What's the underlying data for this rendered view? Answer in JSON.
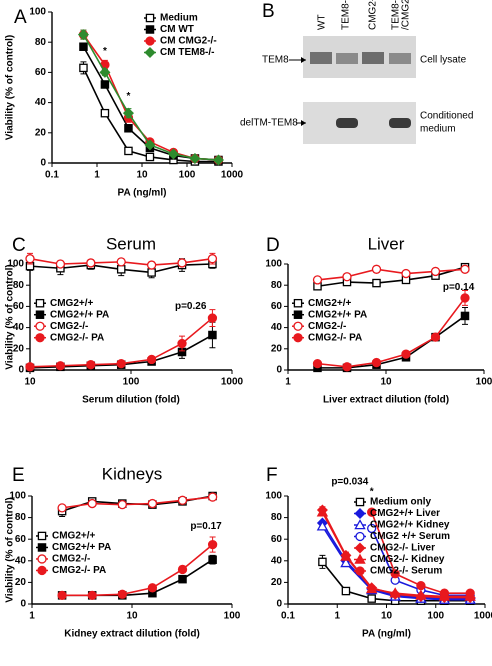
{
  "chart_data": [
    {
      "type": "line",
      "panel": "A",
      "ylabel": "Viability (% of control)",
      "xlabel": "PA (ng/ml)",
      "xscale": "log",
      "xlim": [
        0.1,
        1000
      ],
      "xticks": [
        0.1,
        1,
        10,
        100,
        1000
      ],
      "ylim": [
        0,
        100
      ],
      "yticks": [
        0,
        20,
        40,
        60,
        80,
        100
      ],
      "legend": "upper right",
      "x": [
        0.5,
        1.5,
        5,
        15,
        50,
        150,
        500
      ],
      "series": [
        {
          "name": "Medium",
          "color": "#000000",
          "marker": "square",
          "filled": false,
          "values": [
            63,
            33,
            8,
            4,
            2,
            1,
            1
          ],
          "errors": [
            4,
            2,
            1,
            1,
            1,
            1,
            1
          ]
        },
        {
          "name": "CM WT",
          "color": "#000000",
          "marker": "square",
          "filled": true,
          "values": [
            77,
            52,
            23,
            10,
            5,
            3,
            2
          ],
          "errors": [
            2,
            2,
            2,
            1,
            1,
            1,
            1
          ]
        },
        {
          "name": "CM CMG2-/-",
          "color": "#e8191e",
          "marker": "circle",
          "filled": true,
          "values": [
            85,
            65,
            30,
            14,
            7,
            3,
            2
          ],
          "errors": [
            3,
            3,
            3,
            1,
            1,
            1,
            1
          ]
        },
        {
          "name": "CM TEM8-/-",
          "color": "#2e8b2e",
          "marker": "diamond",
          "filled": true,
          "values": [
            85,
            60,
            33,
            12,
            6,
            3,
            2
          ],
          "errors": [
            3,
            2,
            3,
            1,
            1,
            1,
            1
          ]
        }
      ],
      "annotations": [
        {
          "text": "*",
          "x": 1.5,
          "y": 74
        },
        {
          "text": "*",
          "x": 5,
          "y": 44
        }
      ]
    },
    {
      "type": "line",
      "panel": "C",
      "title": "Serum",
      "ylabel": "Viability (% of control)",
      "xlabel": "Serum dilution (fold)",
      "xscale": "log",
      "xlim": [
        10,
        1000
      ],
      "xticks": [
        10,
        100,
        1000
      ],
      "ylim": [
        0,
        100
      ],
      "yticks": [
        0,
        20,
        40,
        60,
        80,
        100
      ],
      "legend": "center left",
      "x": [
        10,
        20,
        40,
        80,
        160,
        320,
        640
      ],
      "series": [
        {
          "name": "CMG2+/+",
          "color": "#000000",
          "marker": "square",
          "filled": false,
          "values": [
            98,
            96,
            99,
            95,
            92,
            99,
            100
          ],
          "errors": [
            4,
            6,
            4,
            6,
            5,
            6,
            4
          ]
        },
        {
          "name": "CMG2+/+ PA",
          "color": "#000000",
          "marker": "square",
          "filled": true,
          "values": [
            2,
            3,
            4,
            5,
            8,
            17,
            33
          ],
          "errors": [
            1,
            1,
            1,
            1,
            2,
            6,
            12
          ]
        },
        {
          "name": "CMG2-/-",
          "color": "#e8191e",
          "marker": "circle",
          "filled": false,
          "values": [
            105,
            100,
            101,
            102,
            99,
            101,
            105
          ],
          "errors": [
            5,
            3,
            3,
            3,
            3,
            3,
            5
          ]
        },
        {
          "name": "CMG2-/-  PA",
          "color": "#e8191e",
          "marker": "circle",
          "filled": true,
          "values": [
            3,
            4,
            5,
            6,
            10,
            25,
            49
          ],
          "errors": [
            1,
            1,
            1,
            1,
            2,
            7,
            8
          ]
        }
      ],
      "annotations": [
        {
          "text": "p=0.26",
          "x": 390,
          "y": 60
        }
      ]
    },
    {
      "type": "line",
      "panel": "D",
      "title": "Liver",
      "xlabel": "Liver extract dilution (fold)",
      "xscale": "log",
      "xlim": [
        1,
        100
      ],
      "xticks": [
        1,
        10,
        100
      ],
      "ylim": [
        0,
        100
      ],
      "yticks": [
        0,
        20,
        40,
        60,
        80,
        100
      ],
      "legend": "center left",
      "x": [
        2,
        4,
        8,
        16,
        32,
        64
      ],
      "series": [
        {
          "name": "CMG2+/+",
          "color": "#000000",
          "marker": "square",
          "filled": false,
          "values": [
            79,
            83,
            82,
            85,
            89,
            97
          ],
          "errors": [
            2,
            2,
            2,
            3,
            2,
            3
          ]
        },
        {
          "name": "CMG2+/+ PA",
          "color": "#000000",
          "marker": "square",
          "filled": true,
          "values": [
            2,
            2,
            5,
            12,
            31,
            51
          ],
          "errors": [
            1,
            1,
            1,
            1,
            2,
            8
          ]
        },
        {
          "name": "CMG2-/-",
          "color": "#e8191e",
          "marker": "circle",
          "filled": false,
          "values": [
            85,
            88,
            95,
            91,
            93,
            95
          ],
          "errors": [
            2,
            2,
            3,
            2,
            2,
            3
          ]
        },
        {
          "name": "CMG2-/-   PA",
          "color": "#e8191e",
          "marker": "circle",
          "filled": true,
          "values": [
            6,
            3,
            7,
            15,
            31,
            68
          ],
          "errors": [
            1,
            1,
            1,
            1,
            2,
            7
          ]
        }
      ],
      "annotations": [
        {
          "text": "p=0.14",
          "x": 55,
          "y": 78
        }
      ]
    },
    {
      "type": "line",
      "panel": "E",
      "title": "Kidneys",
      "ylabel": "Viability (% of control)",
      "xlabel": "Kidney extract dilution (fold)",
      "xscale": "log",
      "xlim": [
        1,
        100
      ],
      "xticks": [
        1,
        10,
        100
      ],
      "ylim": [
        0,
        100
      ],
      "yticks": [
        0,
        20,
        40,
        60,
        80,
        100
      ],
      "legend": "center left",
      "x": [
        2,
        4,
        8,
        16,
        32,
        64
      ],
      "series": [
        {
          "name": "CMG2+/+",
          "color": "#000000",
          "marker": "square",
          "filled": false,
          "values": [
            86,
            95,
            93,
            92,
            95,
            100
          ],
          "errors": [
            5,
            2,
            2,
            2,
            2,
            1
          ]
        },
        {
          "name": "CMG2+/+ PA",
          "color": "#000000",
          "marker": "square",
          "filled": true,
          "values": [
            8,
            8,
            8,
            10,
            23,
            41
          ],
          "errors": [
            1,
            1,
            1,
            2,
            2,
            4
          ]
        },
        {
          "name": "CMG2-/-",
          "color": "#e8191e",
          "marker": "circle",
          "filled": false,
          "values": [
            89,
            93,
            92,
            93,
            96,
            99
          ],
          "errors": [
            2,
            2,
            2,
            2,
            2,
            1
          ]
        },
        {
          "name": "CMG2-/-   PA",
          "color": "#e8191e",
          "marker": "circle",
          "filled": true,
          "values": [
            8,
            8,
            9,
            15,
            32,
            55
          ],
          "errors": [
            1,
            1,
            1,
            2,
            3,
            7
          ]
        }
      ],
      "annotations": [
        {
          "text": "p=0.17",
          "x": 55,
          "y": 72
        }
      ]
    },
    {
      "type": "line",
      "panel": "F",
      "xlabel": "PA (ng/ml)",
      "xscale": "log",
      "xlim": [
        0.1,
        1000
      ],
      "xticks": [
        0.1,
        1,
        10,
        100,
        1000
      ],
      "ylim": [
        0,
        100
      ],
      "yticks": [
        0,
        20,
        40,
        60,
        80,
        100
      ],
      "legend": "upper right",
      "x": [
        0.5,
        1.5,
        5,
        15,
        50,
        150,
        500
      ],
      "series": [
        {
          "name": "Medium only",
          "color": "#000000",
          "marker": "square",
          "filled": false,
          "values": [
            39,
            12,
            5,
            3,
            3,
            3,
            3
          ],
          "errors": [
            6,
            2,
            1,
            1,
            1,
            1,
            1
          ]
        },
        {
          "name": "CMG2+/+ Liver",
          "color": "#1a1adc",
          "marker": "diamond",
          "filled": true,
          "values": [
            75,
            40,
            14,
            8,
            6,
            5,
            5
          ],
          "errors": [
            2,
            3,
            2,
            1,
            1,
            1,
            1
          ]
        },
        {
          "name": "CMG2+/+ Kidney",
          "color": "#1a1adc",
          "marker": "triangle",
          "filled": false,
          "values": [
            72,
            38,
            13,
            7,
            5,
            4,
            4
          ],
          "errors": [
            2,
            3,
            2,
            1,
            1,
            1,
            1
          ]
        },
        {
          "name": "CMG2 +/+ Serum",
          "color": "#1a1adc",
          "marker": "circle",
          "filled": false,
          "x": [
            5,
            15,
            50,
            150,
            500
          ],
          "values": [
            70,
            22,
            13,
            8,
            8
          ],
          "errors": [
            1,
            2,
            2,
            1,
            1
          ]
        },
        {
          "name": "CMG2-/- Liver",
          "color": "#e8191e",
          "marker": "diamond",
          "filled": true,
          "values": [
            87,
            45,
            15,
            9,
            7,
            6,
            6
          ],
          "errors": [
            3,
            3,
            2,
            1,
            1,
            1,
            1
          ]
        },
        {
          "name": "CMG2-/- Kidney",
          "color": "#e8191e",
          "marker": "triangle",
          "filled": true,
          "values": [
            85,
            44,
            14,
            10,
            8,
            7,
            7
          ],
          "errors": [
            3,
            3,
            2,
            1,
            1,
            1,
            1
          ]
        },
        {
          "name": "CMG2-/- Serum",
          "color": "#e8191e",
          "marker": "circle",
          "filled": true,
          "x": [
            5,
            15,
            50,
            150,
            500
          ],
          "values": [
            85,
            28,
            17,
            10,
            10
          ],
          "errors": [
            1,
            2,
            2,
            1,
            1
          ]
        }
      ],
      "annotations": [
        {
          "text": "p=0.034",
          "x": 1.8,
          "y": 113
        },
        {
          "text": "*",
          "x": 5,
          "y": 104
        }
      ]
    }
  ],
  "blot": {
    "panel": "B",
    "lanes": [
      [
        "WT"
      ],
      [
        "TEM8-/-"
      ],
      [
        "CMG2-/-"
      ],
      [
        "TEM8-/-",
        "/CMG2-/-"
      ]
    ],
    "rows": [
      {
        "label": "TEM8",
        "side": [
          "Cell lysate"
        ]
      },
      {
        "label": "delTM-TEM8",
        "side": [
          "Conditioned",
          "medium"
        ]
      }
    ]
  }
}
